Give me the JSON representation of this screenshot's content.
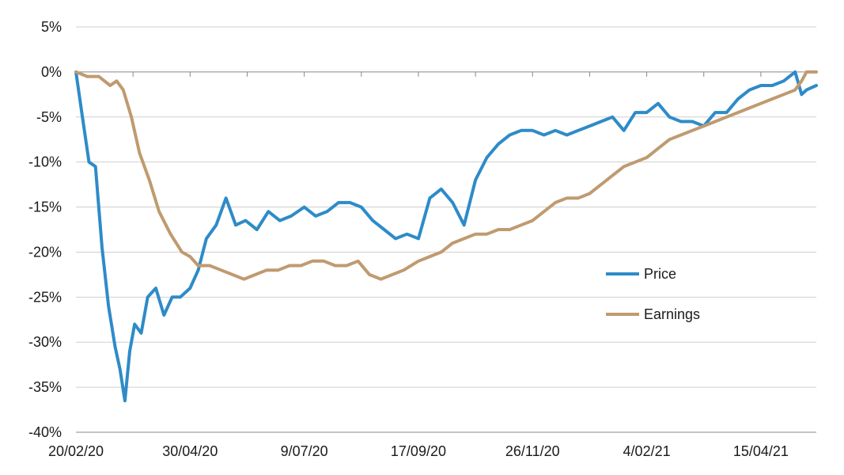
{
  "chart_data": {
    "type": "line",
    "title": "",
    "xlabel": "",
    "ylabel": "",
    "ylim": [
      -40,
      5
    ],
    "y_ticks": [
      5,
      0,
      -5,
      -10,
      -15,
      -20,
      -25,
      -30,
      -35,
      -40
    ],
    "y_tick_labels": [
      "5%",
      "0%",
      "-5%",
      "-10%",
      "-15%",
      "-20%",
      "-25%",
      "-30%",
      "-35%",
      "-40%"
    ],
    "x_tick_labels": [
      "20/02/20",
      "30/04/20",
      "9/07/20",
      "17/09/20",
      "26/11/20",
      "4/02/21",
      "15/04/21"
    ],
    "x_range": [
      "20/02/20",
      "19/05/21"
    ],
    "grid": "horizontal",
    "legend_position": "center-right",
    "colors": {
      "price": "#2e8bc8",
      "earnings": "#c09a70",
      "grid": "#cfcfcf",
      "axis": "#888888"
    },
    "series": [
      {
        "name": "Price",
        "x": [
          "20/02/20",
          "24/02/20",
          "28/02/20",
          "3/03/20",
          "7/03/20",
          "11/03/20",
          "15/03/20",
          "18/03/20",
          "21/03/20",
          "24/03/20",
          "27/03/20",
          "31/03/20",
          "4/04/20",
          "9/04/20",
          "14/04/20",
          "19/04/20",
          "24/04/20",
          "30/04/20",
          "5/05/20",
          "10/05/20",
          "16/05/20",
          "22/05/20",
          "28/05/20",
          "3/06/20",
          "10/06/20",
          "17/06/20",
          "24/06/20",
          "1/07/20",
          "9/07/20",
          "16/07/20",
          "23/07/20",
          "30/07/20",
          "6/08/20",
          "13/08/20",
          "20/08/20",
          "27/08/20",
          "3/09/20",
          "10/09/20",
          "17/09/20",
          "24/09/20",
          "1/10/20",
          "8/10/20",
          "15/10/20",
          "22/10/20",
          "29/10/20",
          "5/11/20",
          "12/11/20",
          "19/11/20",
          "26/11/20",
          "3/12/20",
          "10/12/20",
          "17/12/20",
          "24/12/20",
          "31/12/20",
          "7/01/21",
          "14/01/21",
          "21/01/21",
          "28/01/21",
          "4/02/21",
          "11/02/21",
          "18/02/21",
          "25/02/21",
          "4/03/21",
          "11/03/21",
          "18/03/21",
          "25/03/21",
          "1/04/21",
          "8/04/21",
          "15/04/21",
          "22/04/21",
          "29/04/21",
          "6/05/21",
          "10/05/21",
          "13/05/21",
          "19/05/21"
        ],
        "y": [
          0,
          -5,
          -10,
          -10.5,
          -19.5,
          -26,
          -30.5,
          -33,
          -36.5,
          -31,
          -28,
          -29,
          -25,
          -24,
          -27,
          -25,
          -25,
          -24,
          -22,
          -18.5,
          -17,
          -14,
          -17,
          -16.5,
          -17.5,
          -15.5,
          -16.5,
          -16,
          -15,
          -16,
          -15.5,
          -14.5,
          -14.5,
          -15,
          -16.5,
          -17.5,
          -18.5,
          -18,
          -18.5,
          -14,
          -13,
          -14.5,
          -17,
          -12,
          -9.5,
          -8,
          -7,
          -6.5,
          -6.5,
          -7,
          -6.5,
          -7,
          -6.5,
          -6,
          -5.5,
          -5,
          -6.5,
          -4.5,
          -4.5,
          -3.5,
          -5,
          -5.5,
          -5.5,
          -6,
          -4.5,
          -4.5,
          -3,
          -2,
          -1.5,
          -1.5,
          -1,
          0,
          -2.5,
          -2,
          -1.5
        ]
      },
      {
        "name": "Earnings",
        "x": [
          "20/02/20",
          "27/02/20",
          "5/03/20",
          "12/03/20",
          "16/03/20",
          "20/03/20",
          "25/03/20",
          "30/03/20",
          "5/04/20",
          "11/04/20",
          "18/04/20",
          "25/04/20",
          "30/04/20",
          "5/05/20",
          "12/05/20",
          "19/05/20",
          "26/05/20",
          "2/06/20",
          "9/06/20",
          "16/06/20",
          "23/06/20",
          "30/06/20",
          "7/07/20",
          "14/07/20",
          "21/07/20",
          "28/07/20",
          "4/08/20",
          "11/08/20",
          "18/08/20",
          "25/08/20",
          "1/09/20",
          "8/09/20",
          "17/09/20",
          "24/09/20",
          "1/10/20",
          "8/10/20",
          "15/10/20",
          "22/10/20",
          "29/10/20",
          "5/11/20",
          "12/11/20",
          "19/11/20",
          "26/11/20",
          "3/12/20",
          "10/12/20",
          "17/12/20",
          "24/12/20",
          "31/12/20",
          "7/01/21",
          "14/01/21",
          "21/01/21",
          "28/01/21",
          "4/02/21",
          "11/02/21",
          "18/02/21",
          "25/02/21",
          "4/03/21",
          "11/03/21",
          "18/03/21",
          "25/03/21",
          "1/04/21",
          "8/04/21",
          "15/04/21",
          "22/04/21",
          "29/04/21",
          "6/05/21",
          "10/05/21",
          "13/05/21",
          "19/05/21"
        ],
        "y": [
          0,
          -0.5,
          -0.5,
          -1.5,
          -1,
          -2,
          -5,
          -9,
          -12,
          -15.5,
          -18,
          -20,
          -20.5,
          -21.5,
          -21.5,
          -22,
          -22.5,
          -23,
          -22.5,
          -22,
          -22,
          -21.5,
          -21.5,
          -21,
          -21,
          -21.5,
          -21.5,
          -21,
          -22.5,
          -23,
          -22.5,
          -22,
          -21,
          -20.5,
          -20,
          -19,
          -18.5,
          -18,
          -18,
          -17.5,
          -17.5,
          -17,
          -16.5,
          -15.5,
          -14.5,
          -14,
          -14,
          -13.5,
          -12.5,
          -11.5,
          -10.5,
          -10,
          -9.5,
          -8.5,
          -7.5,
          -7,
          -6.5,
          -6,
          -5.5,
          -5,
          -4.5,
          -4,
          -3.5,
          -3,
          -2.5,
          -2,
          -1,
          0,
          0
        ]
      }
    ]
  }
}
